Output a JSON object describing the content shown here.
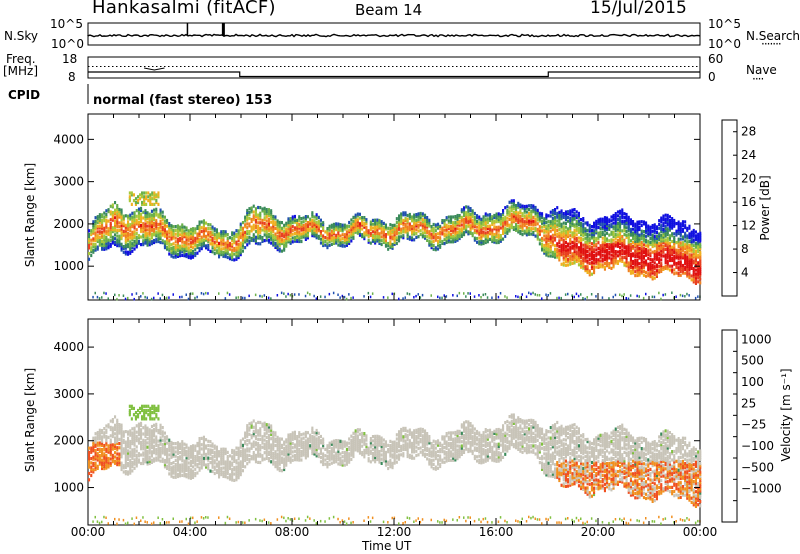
{
  "header": {
    "station": "Hankasalmi (fitACF)",
    "beam": "Beam 14",
    "date": "15/Jul/2015"
  },
  "panels": {
    "nsky": {
      "left_label": "N.Sky",
      "right_label": "N.Search",
      "left_ticks": [
        "10^5",
        "10^0"
      ],
      "right_ticks": [
        "10^5",
        "10^0"
      ]
    },
    "freq": {
      "left_label_1": "Freq.",
      "left_label_2": "[MHz]",
      "right_label": "Nave",
      "left_ticks": [
        "18",
        "8"
      ],
      "right_ticks": [
        "60",
        "0"
      ]
    },
    "cpid": {
      "label": "CPID",
      "mode_text": "normal (fast stereo) 153"
    }
  },
  "colors": {
    "power_scale": [
      "#1010e0",
      "#2050b0",
      "#3a8a5a",
      "#6ab04a",
      "#a8c83a",
      "#f0b020",
      "#f08020",
      "#e84020",
      "#e01010"
    ],
    "velocity_scale": [
      "#e01010",
      "#f05020",
      "#f09020",
      "#c8c4b8",
      "#c8c4b8",
      "#80c040",
      "#3a8a5a",
      "#2050b0"
    ],
    "ground_scatter": "#c8c4b8"
  },
  "chart_data": [
    {
      "type": "heatmap",
      "name": "power",
      "ylabel": "Slant Range [km]",
      "xlabel": "",
      "yticks": [
        "1000",
        "2000",
        "3000",
        "4000"
      ],
      "ylim": [
        200,
        4600
      ],
      "xlim_hours": [
        0,
        24
      ],
      "colorbar": {
        "label": "Power [dB]",
        "ticks": [
          "4",
          "8",
          "12",
          "16",
          "20",
          "24",
          "28"
        ],
        "range": [
          0,
          30
        ]
      },
      "description_series": [
        {
          "t": 0.0,
          "bottom": 1200,
          "top": 1900,
          "peak": 1500
        },
        {
          "t": 1.0,
          "bottom": 1500,
          "top": 2500,
          "peak": 2100
        },
        {
          "t": 2.5,
          "bottom": 1500,
          "top": 2300,
          "peak": 1900
        },
        {
          "t": 4.0,
          "bottom": 1300,
          "top": 2000,
          "peak": 1700
        },
        {
          "t": 5.5,
          "bottom": 1300,
          "top": 1900,
          "peak": 1600
        },
        {
          "t": 6.5,
          "bottom": 1500,
          "top": 2400,
          "peak": 2000
        },
        {
          "t": 8.0,
          "bottom": 1600,
          "top": 2200,
          "peak": 1900
        },
        {
          "t": 10.0,
          "bottom": 1600,
          "top": 2100,
          "peak": 1850
        },
        {
          "t": 12.0,
          "bottom": 1600,
          "top": 2200,
          "peak": 1900
        },
        {
          "t": 14.0,
          "bottom": 1600,
          "top": 2200,
          "peak": 1900
        },
        {
          "t": 16.0,
          "bottom": 1700,
          "top": 2400,
          "peak": 2000
        },
        {
          "t": 17.5,
          "bottom": 1800,
          "top": 2500,
          "peak": 2100
        },
        {
          "t": 18.5,
          "bottom": 1000,
          "top": 2300,
          "peak": 1500
        },
        {
          "t": 20.0,
          "bottom": 1000,
          "top": 2200,
          "peak": 1400
        },
        {
          "t": 21.5,
          "bottom": 900,
          "top": 2200,
          "peak": 1300
        },
        {
          "t": 23.0,
          "bottom": 800,
          "top": 2100,
          "peak": 1100
        },
        {
          "t": 24.0,
          "bottom": 800,
          "top": 2000,
          "peak": 1100
        }
      ]
    },
    {
      "type": "heatmap",
      "name": "velocity",
      "ylabel": "Slant Range [km]",
      "xlabel": "Time UT",
      "yticks": [
        "1000",
        "2000",
        "3000",
        "4000"
      ],
      "ylim": [
        200,
        4600
      ],
      "xticks": [
        "00:00",
        "04:00",
        "08:00",
        "12:00",
        "16:00",
        "20:00",
        "00:00"
      ],
      "xlim_hours": [
        0,
        24
      ],
      "colorbar": {
        "label": "Velocity [m s⁻¹]",
        "ticks": [
          "1000",
          "500",
          "100",
          "25",
          "−25",
          "−100",
          "−500",
          "−1000"
        ]
      }
    }
  ]
}
